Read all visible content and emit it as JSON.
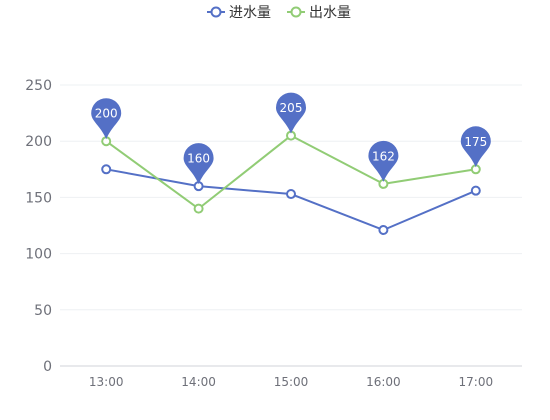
{
  "chart_data": {
    "type": "line",
    "categories": [
      "13:00",
      "14:00",
      "15:00",
      "16:00",
      "17:00"
    ],
    "series": [
      {
        "name": "进水量",
        "values": [
          175,
          160,
          153,
          121,
          156
        ],
        "color": "#5470c6"
      },
      {
        "name": "出水量",
        "values": [
          200,
          140,
          205,
          162,
          175
        ],
        "color": "#91cc75"
      }
    ],
    "markers": [
      200,
      160,
      205,
      162,
      175
    ],
    "marker_color": "#5470c6",
    "ylim": [
      0,
      250
    ],
    "yticks": [
      0,
      50,
      100,
      150,
      200,
      250
    ],
    "grid": true,
    "legend": "top-center"
  }
}
